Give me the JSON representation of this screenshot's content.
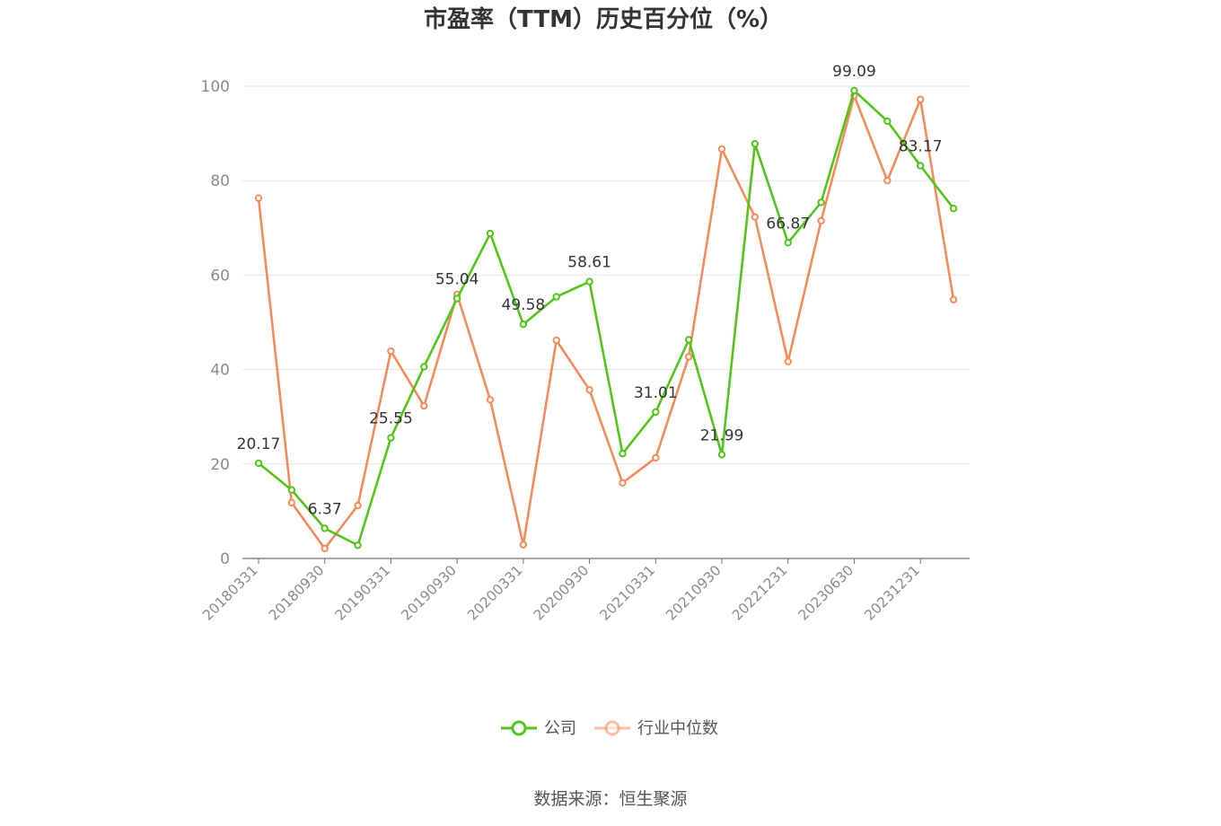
{
  "chart_data": {
    "type": "line",
    "title": "市盈率（TTM）历史百分位（%）",
    "source": "数据来源：恒生聚源",
    "ylim": [
      0,
      100
    ],
    "yticks": [
      0,
      20,
      40,
      60,
      80,
      100
    ],
    "grid": true,
    "legend_position": "bottom",
    "x": [
      "20180331",
      "20180630",
      "20180930",
      "20181231",
      "20190331",
      "20190630",
      "20190930",
      "20191231",
      "20200331",
      "20200630",
      "20200930",
      "20201231",
      "20210331",
      "20210630",
      "20210930",
      "20211231",
      "20221231",
      "20230331",
      "20230630",
      "20230930",
      "20231231",
      "20240331"
    ],
    "x_tick_labels": [
      "20180331",
      "20180930",
      "20190331",
      "20190930",
      "20200331",
      "20200930",
      "20210331",
      "20210930",
      "20221231",
      "20230630",
      "20231231"
    ],
    "series": [
      {
        "name": "公司",
        "color": "#52c41a",
        "values": [
          20.17,
          14.5,
          6.37,
          2.8,
          25.55,
          40.6,
          55.04,
          68.8,
          49.58,
          55.4,
          58.61,
          22.2,
          31.01,
          46.3,
          21.99,
          87.8,
          66.87,
          75.4,
          99.09,
          92.6,
          83.17,
          74.1
        ],
        "labeled_points": [
          {
            "index": 0,
            "label": "20.17"
          },
          {
            "index": 2,
            "label": "6.37"
          },
          {
            "index": 4,
            "label": "25.55"
          },
          {
            "index": 6,
            "label": "55.04"
          },
          {
            "index": 8,
            "label": "49.58"
          },
          {
            "index": 10,
            "label": "58.61"
          },
          {
            "index": 12,
            "label": "31.01"
          },
          {
            "index": 14,
            "label": "21.99"
          },
          {
            "index": 16,
            "label": "66.87"
          },
          {
            "index": 18,
            "label": "99.09"
          },
          {
            "index": 20,
            "label": "83.17"
          }
        ]
      },
      {
        "name": "行业中位数",
        "color": "#f28c5a",
        "values": [
          76.3,
          11.8,
          2.1,
          11.2,
          43.9,
          32.3,
          55.9,
          33.6,
          2.9,
          46.2,
          35.7,
          16.0,
          21.3,
          42.7,
          86.7,
          72.3,
          41.7,
          71.5,
          98.0,
          80.0,
          97.2,
          54.8
        ]
      }
    ]
  }
}
